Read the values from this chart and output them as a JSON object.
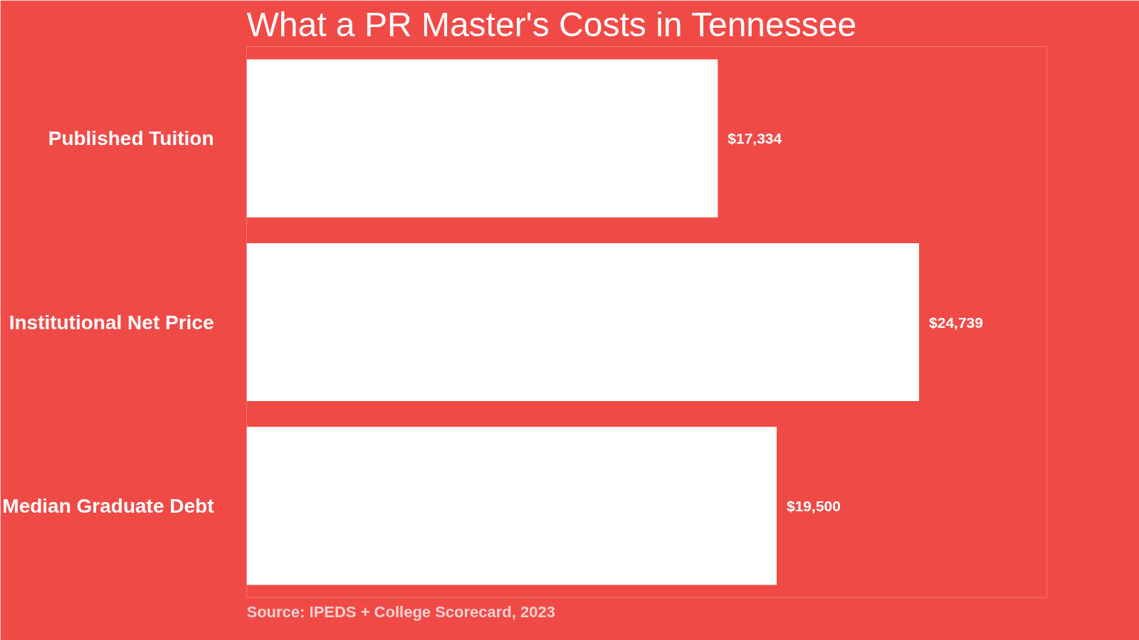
{
  "chart_data": {
    "type": "bar",
    "orientation": "horizontal",
    "title": "What a PR Master's Costs in Tennessee",
    "categories": [
      "Published Tuition",
      "Institutional Net Price",
      "Median Graduate Debt"
    ],
    "values": [
      17334,
      24739,
      19500
    ],
    "value_labels": [
      "$17,334",
      "$24,739",
      "$19,500"
    ],
    "color": "#ffffff",
    "grid": false,
    "tick_labels": "y",
    "annotations": [
      "Source: IPEDS + College Scorecard, 2023"
    ]
  }
}
